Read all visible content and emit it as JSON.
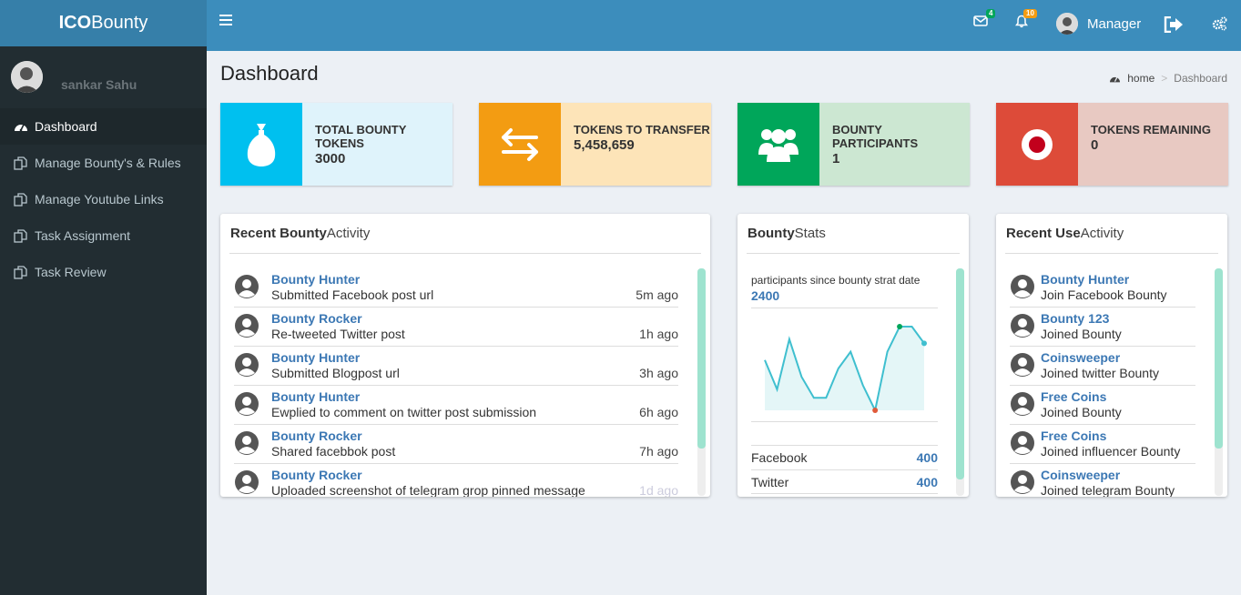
{
  "app": {
    "logo_bold": "ICO",
    "logo_rest": "Bounty"
  },
  "header": {
    "mail_badge": "4",
    "bell_badge": "10",
    "user_label": "Manager"
  },
  "sidebar": {
    "user_name": "sankar Sahu",
    "items": [
      {
        "label": "Dashboard",
        "icon": "dashboard-icon",
        "active": true
      },
      {
        "label": "Manage Bounty's & Rules",
        "icon": "copy-icon"
      },
      {
        "label": "Manage Youtube Links",
        "icon": "copy-icon"
      },
      {
        "label": "Task Assignment",
        "icon": "copy-icon"
      },
      {
        "label": "Task Review",
        "icon": "copy-icon"
      }
    ]
  },
  "page": {
    "title": "Dashboard",
    "breadcrumb": {
      "home": "home",
      "current": "Dashboard"
    }
  },
  "info_boxes": [
    {
      "label": "TOTAL BOUNTY TOKENS",
      "value": "3000",
      "icon": "money-bag-icon",
      "color": "#00c0ef",
      "bg": "#dff3fb"
    },
    {
      "label": "TOKENS TO TRANSFER",
      "value": "5,458,659",
      "icon": "exchange-icon",
      "color": "#f39c12",
      "bg": "#fde4b8"
    },
    {
      "label": "BOUNTY PARTICIPANTS",
      "value": "1",
      "icon": "users-icon",
      "color": "#00a65a",
      "bg": "#cce7d2"
    },
    {
      "label": "TOKENS REMAINING",
      "value": "0",
      "icon": "record-icon",
      "color": "#dd4b39",
      "bg": "#e8c9c2"
    }
  ],
  "recent_bounty": {
    "title_bold": "Recent Bounty",
    "title_rest": " Activity",
    "rows": [
      {
        "name": "Bounty Hunter",
        "desc": "Submitted Facebook post url",
        "time": "5m ago"
      },
      {
        "name": "Bounty Rocker",
        "desc": "Re-tweeted Twitter post",
        "time": "1h ago"
      },
      {
        "name": "Bounty Hunter",
        "desc": "Submitted Blogpost url",
        "time": "3h ago"
      },
      {
        "name": "Bounty Hunter",
        "desc": "Ewplied to comment on twitter post submission",
        "time": "6h ago"
      },
      {
        "name": "Bounty Rocker",
        "desc": "Shared facebbok post",
        "time": "7h ago"
      },
      {
        "name": "Bounty Rocker",
        "desc": "Uploaded screenshot of telegram grop pinned message",
        "time": "1d ago"
      }
    ]
  },
  "bounty_stats": {
    "title_bold": "Bounty",
    "title_rest": "Stats",
    "caption": "participants since bounty strat date",
    "value": "2400",
    "sparkline": [
      12,
      5,
      17,
      8,
      3,
      3,
      10,
      14,
      6,
      0,
      14,
      20,
      20,
      16
    ],
    "rows": [
      {
        "label": "Facebook",
        "value": "400"
      },
      {
        "label": "Twitter",
        "value": "400"
      }
    ]
  },
  "recent_use": {
    "title_bold": "Recent Use",
    "title_rest": "Activity",
    "rows": [
      {
        "name": "Bounty Hunter",
        "desc": "Join Facebook Bounty"
      },
      {
        "name": "Bounty 123",
        "desc": "Joined Bounty"
      },
      {
        "name": "Coinsweeper",
        "desc": "Joined twitter Bounty"
      },
      {
        "name": "Free Coins",
        "desc": "Joined Bounty"
      },
      {
        "name": "Free Coins",
        "desc": "Joined influencer Bounty"
      },
      {
        "name": "Coinsweeper",
        "desc": "Joined telegram Bounty"
      }
    ]
  }
}
